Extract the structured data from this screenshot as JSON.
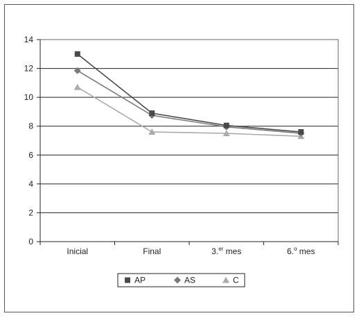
{
  "chart_data": {
    "type": "line",
    "categories": [
      "Inicial",
      "Final",
      "3.er mes",
      "6.º mes"
    ],
    "category_labels": [
      {
        "base": "Inicial",
        "sup": ""
      },
      {
        "base": "Final",
        "sup": ""
      },
      {
        "base": "3.",
        "sup": "er",
        "rest": " mes"
      },
      {
        "base": "6.",
        "sup": "o",
        "rest": " mes"
      }
    ],
    "series": [
      {
        "name": "AP",
        "marker": "square",
        "color": "#4a4a4a",
        "values": [
          13.0,
          8.9,
          8.05,
          7.6
        ]
      },
      {
        "name": "AS",
        "marker": "diamond",
        "color": "#7a7a7a",
        "values": [
          11.85,
          8.75,
          7.95,
          7.5
        ]
      },
      {
        "name": "C",
        "marker": "triangle",
        "color": "#ababab",
        "values": [
          10.7,
          7.6,
          7.5,
          7.3
        ]
      }
    ],
    "ylim": [
      0,
      14
    ],
    "yticks": [
      0,
      2,
      4,
      6,
      8,
      10,
      12,
      14
    ],
    "grid": true,
    "legend_position": "bottom-center"
  }
}
